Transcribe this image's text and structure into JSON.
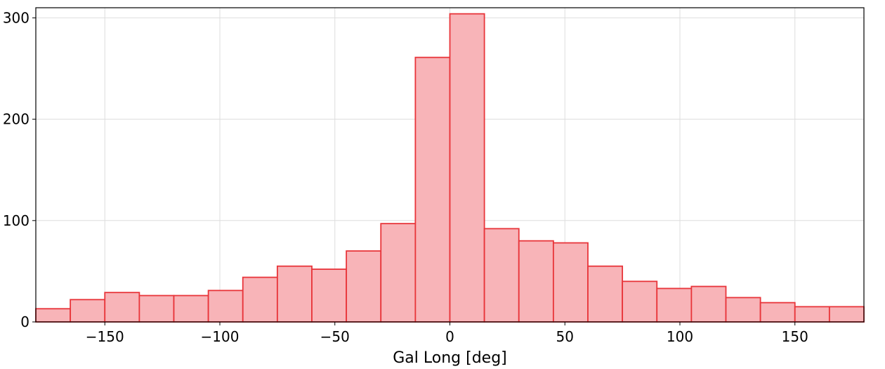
{
  "chart_data": {
    "type": "bar",
    "xlabel": "Gal Long [deg]",
    "ylabel": "",
    "xlim": [
      -180,
      180
    ],
    "ylim": [
      0,
      310
    ],
    "grid": true,
    "x_ticks": [
      -150,
      -100,
      -50,
      0,
      50,
      100,
      150
    ],
    "x_tick_labels": [
      "−150",
      "−100",
      "−50",
      "0",
      "50",
      "100",
      "150"
    ],
    "y_ticks": [
      0,
      100,
      200,
      300
    ],
    "y_tick_labels": [
      "0",
      "100",
      "200",
      "300"
    ],
    "bin_edges": [
      -180,
      -165,
      -150,
      -135,
      -120,
      -105,
      -90,
      -75,
      -60,
      -45,
      -30,
      -15,
      0,
      15,
      30,
      45,
      60,
      75,
      90,
      105,
      120,
      135,
      150,
      165,
      180
    ],
    "values": [
      13,
      22,
      29,
      26,
      26,
      31,
      44,
      55,
      52,
      70,
      97,
      261,
      304,
      92,
      80,
      78,
      55,
      40,
      33,
      35,
      24,
      19,
      15,
      15
    ],
    "colors": {
      "fill": "#f8b4b8",
      "edge": "#e8353a",
      "grid": "#dddddd"
    }
  }
}
